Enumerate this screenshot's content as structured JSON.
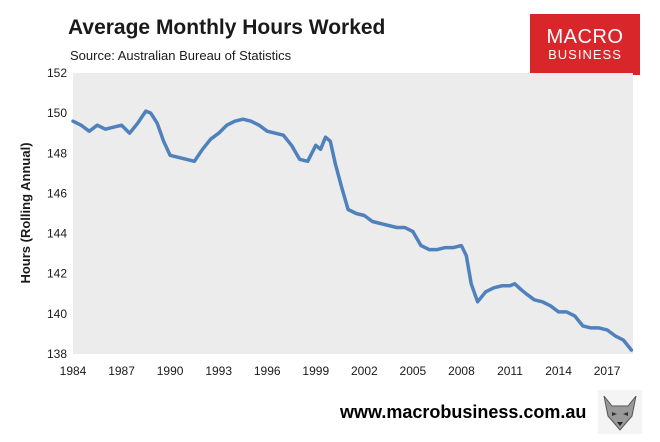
{
  "header": {
    "title": "Average Monthly Hours Worked",
    "subtitle": "Source: Australian Bureau of Statistics"
  },
  "brand": {
    "line1": "MACRO",
    "line2": "BUSINESS",
    "color": "#d9262b"
  },
  "footer": {
    "url": "www.macrobusiness.com.au"
  },
  "logo_icon": "wolf-head-icon",
  "chart_data": {
    "type": "line",
    "title": "Average Monthly Hours Worked",
    "xlabel": "",
    "ylabel": "Hours (Rolling Annual)",
    "xlim": [
      1984,
      2018.6
    ],
    "ylim": [
      138,
      152
    ],
    "x_ticks": [
      "1984",
      "1987",
      "1990",
      "1993",
      "1996",
      "1999",
      "2002",
      "2005",
      "2008",
      "2011",
      "2014",
      "2017"
    ],
    "y_ticks": [
      "138",
      "140",
      "142",
      "144",
      "146",
      "148",
      "150",
      "152"
    ],
    "grid": false,
    "plot_background": "#ececec",
    "line_color": "#4f81bd",
    "series": [
      {
        "x": [
          1984.0,
          1984.5,
          1985.0,
          1985.5,
          1986.0,
          1986.5,
          1987.0,
          1987.5,
          1988.0,
          1988.5,
          1988.8,
          1989.2,
          1989.6,
          1990.0,
          1990.5,
          1991.0,
          1991.5,
          1992.0,
          1992.5,
          1993.0,
          1993.5,
          1994.0,
          1994.5,
          1995.0,
          1995.5,
          1996.0,
          1996.5,
          1997.0,
          1997.5,
          1998.0,
          1998.5,
          1999.0,
          1999.3,
          1999.6,
          1999.9,
          2000.2,
          2000.6,
          2001.0,
          2001.5,
          2002.0,
          2002.5,
          2003.0,
          2003.5,
          2004.0,
          2004.5,
          2005.0,
          2005.5,
          2006.0,
          2006.5,
          2007.0,
          2007.5,
          2008.0,
          2008.3,
          2008.6,
          2009.0,
          2009.5,
          2010.0,
          2010.5,
          2011.0,
          2011.3,
          2011.7,
          2012.0,
          2012.5,
          2013.0,
          2013.5,
          2014.0,
          2014.5,
          2015.0,
          2015.5,
          2016.0,
          2016.5,
          2017.0,
          2017.5,
          2018.0,
          2018.5
        ],
        "y": [
          149.6,
          149.4,
          149.1,
          149.4,
          149.2,
          149.3,
          149.4,
          149.0,
          149.5,
          150.1,
          150.0,
          149.5,
          148.6,
          147.9,
          147.8,
          147.7,
          147.6,
          148.2,
          148.7,
          149.0,
          149.4,
          149.6,
          149.7,
          149.6,
          149.4,
          149.1,
          149.0,
          148.9,
          148.4,
          147.7,
          147.6,
          148.4,
          148.2,
          148.8,
          148.6,
          147.5,
          146.3,
          145.2,
          145.0,
          144.9,
          144.6,
          144.5,
          144.4,
          144.3,
          144.3,
          144.1,
          143.4,
          143.2,
          143.2,
          143.3,
          143.3,
          143.4,
          142.9,
          141.5,
          140.6,
          141.1,
          141.3,
          141.4,
          141.4,
          141.5,
          141.2,
          141.0,
          140.7,
          140.6,
          140.4,
          140.1,
          140.1,
          139.9,
          139.4,
          139.3,
          139.3,
          139.2,
          138.9,
          138.7,
          138.2
        ]
      }
    ]
  }
}
